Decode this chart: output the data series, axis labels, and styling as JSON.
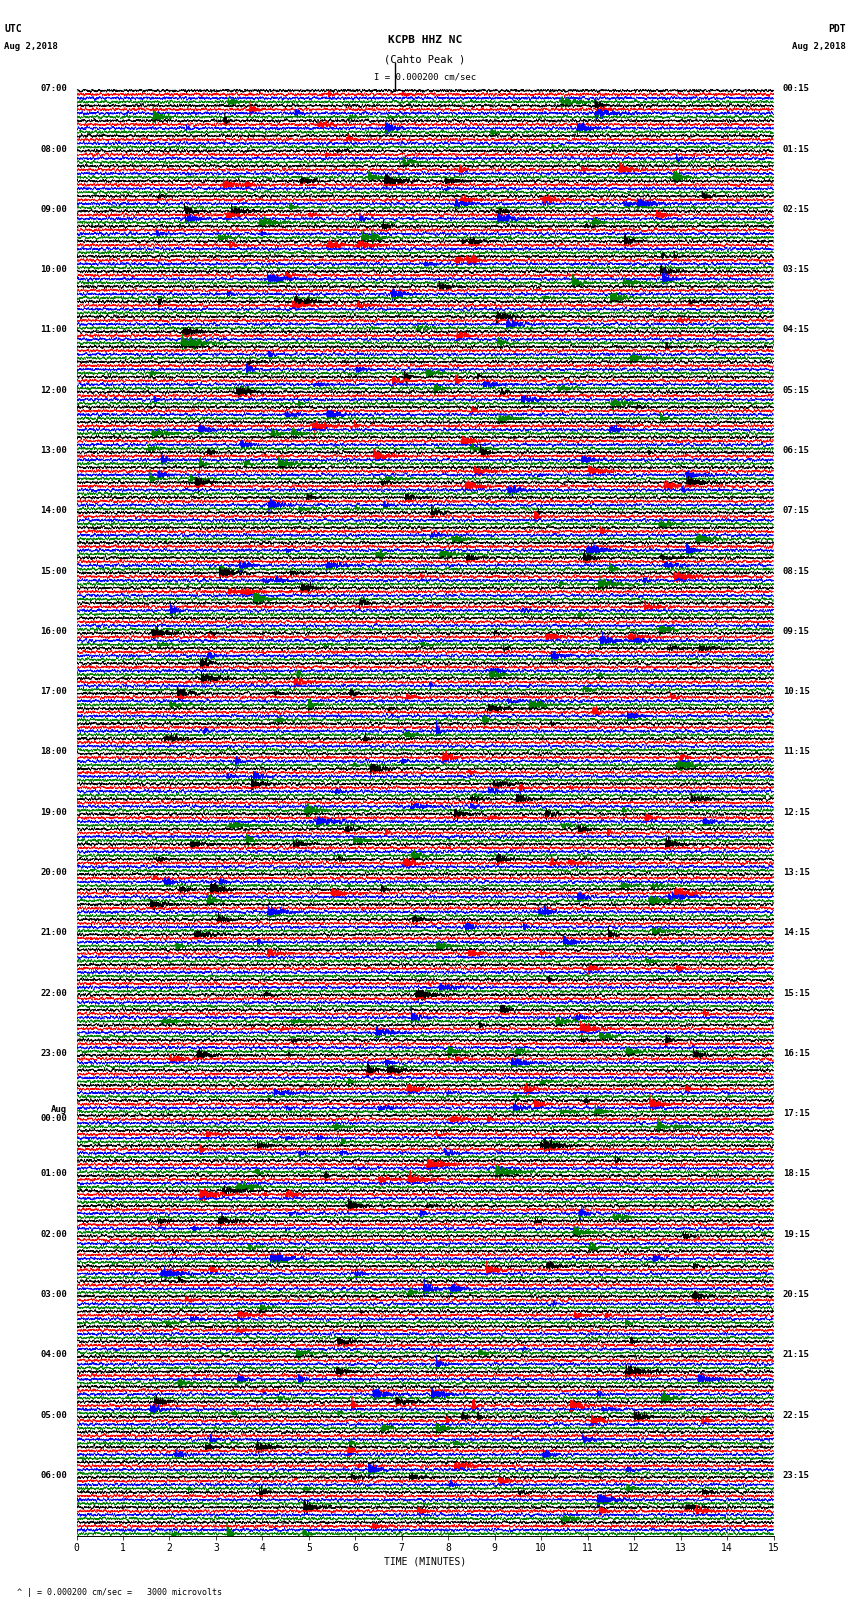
{
  "title_line1": "KCPB HHZ NC",
  "title_line2": "(Cahto Peak )",
  "scale_label": "I = 0.000200 cm/sec",
  "label_utc": "UTC",
  "label_pdt": "PDT",
  "date_left": "Aug 2,2018",
  "date_right": "Aug 2,2018",
  "footnote": "= 0.000200 cm/sec =   3000 microvolts",
  "xlabel": "TIME (MINUTES)",
  "colors": [
    "black",
    "red",
    "blue",
    "green"
  ],
  "utc_hours": [
    "07:00",
    "08:00",
    "09:00",
    "10:00",
    "11:00",
    "12:00",
    "13:00",
    "14:00",
    "15:00",
    "16:00",
    "17:00",
    "18:00",
    "19:00",
    "20:00",
    "21:00",
    "22:00",
    "23:00",
    "00:00",
    "01:00",
    "02:00",
    "03:00",
    "04:00",
    "05:00",
    "06:00"
  ],
  "pdt_hours": [
    "00:15",
    "01:15",
    "02:15",
    "03:15",
    "04:15",
    "05:15",
    "06:15",
    "07:15",
    "08:15",
    "09:15",
    "10:15",
    "11:15",
    "12:15",
    "13:15",
    "14:15",
    "15:15",
    "16:15",
    "17:15",
    "18:15",
    "19:15",
    "20:15",
    "21:15",
    "22:15",
    "23:15"
  ],
  "utc_midnight_index": 17,
  "num_hour_groups": 24,
  "rows_per_hour": 4,
  "total_rows": 96,
  "minutes": 15,
  "bg_color": "white",
  "trace_linewidth": 0.4,
  "font_size_title": 8,
  "font_size_label": 7,
  "font_size_tick": 7
}
